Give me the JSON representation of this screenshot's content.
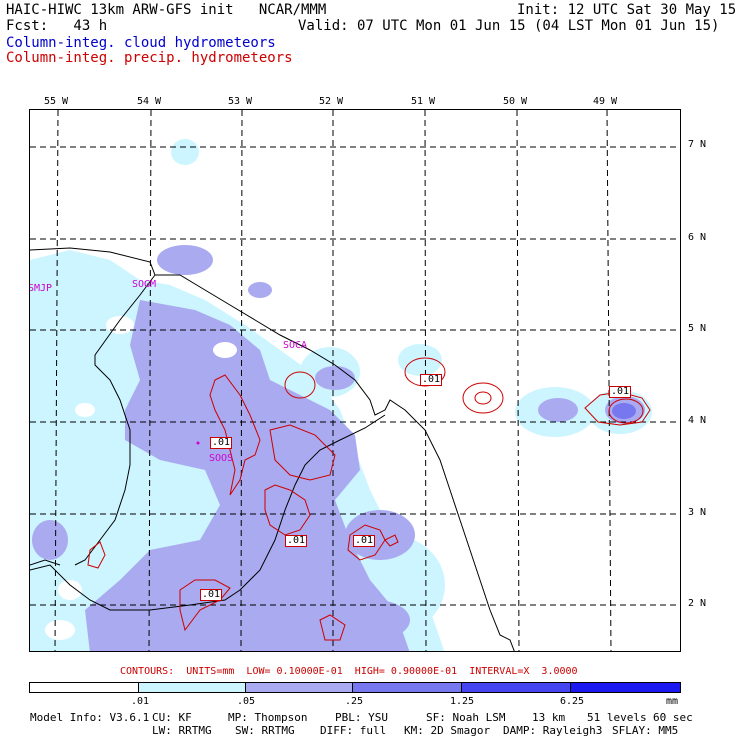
{
  "header": {
    "line1_left": "HAIC-HIWC 13km ARW-GFS init   NCAR/MMM",
    "line1_right": "Init: 12 UTC Sat 30 May 15",
    "line2_left": "Fcst:   43 h",
    "line2_right": "Valid: 07 UTC Mon 01 Jun 15 (04 LST Mon 01 Jun 15)",
    "field1": "Column-integ. cloud hydrometeors",
    "field2": "Column-integ. precip. hydrometeors"
  },
  "colors": {
    "cloud_label": "#0000cc",
    "precip_label": "#cc0000",
    "station": "#cc00cc",
    "fill_lightest": "#ccf5ff",
    "fill_light": "#aaaaf0",
    "fill_mid": "#7777f0",
    "fill_dark": "#4444f0",
    "fill_darkest": "#1a1af0"
  },
  "lon_labels": [
    "55 W",
    "54 W",
    "53 W",
    "52 W",
    "51 W",
    "50 W",
    "49 W"
  ],
  "lat_labels": [
    "7 N",
    "6 N",
    "5 N",
    "4 N",
    "3 N",
    "2 N"
  ],
  "stations": [
    "SMJP",
    "SOGM",
    "SOCA",
    "SOOS"
  ],
  "contour_labels": [
    ".01",
    ".01",
    ".01",
    ".01",
    ".01",
    ".01"
  ],
  "contours_info": "CONTOURS:  UNITS=mm  LOW= 0.10000E-01  HIGH= 0.90000E-01  INTERVAL=X  3.0000",
  "colorbar": {
    "ticks": [
      ".01",
      ".05",
      ".25",
      "1.25",
      "6.25"
    ],
    "unit": "mm",
    "colors": [
      "#ffffff",
      "#ccf5ff",
      "#aaaaf0",
      "#7777f0",
      "#4444f0",
      "#1a1af0"
    ]
  },
  "footer": {
    "line1": [
      "Model Info: V3.6.1",
      "CU: KF",
      "MP: Thompson",
      "PBL: YSU",
      "SF: Noah LSM",
      "13 km",
      "51 levels",
      "60 sec"
    ],
    "line2": [
      "LW: RRTMG",
      "SW: RRTMG",
      "DIFF: full",
      "KM: 2D Smagor",
      "DAMP: Rayleigh3",
      "SFLAY: MM5"
    ]
  }
}
